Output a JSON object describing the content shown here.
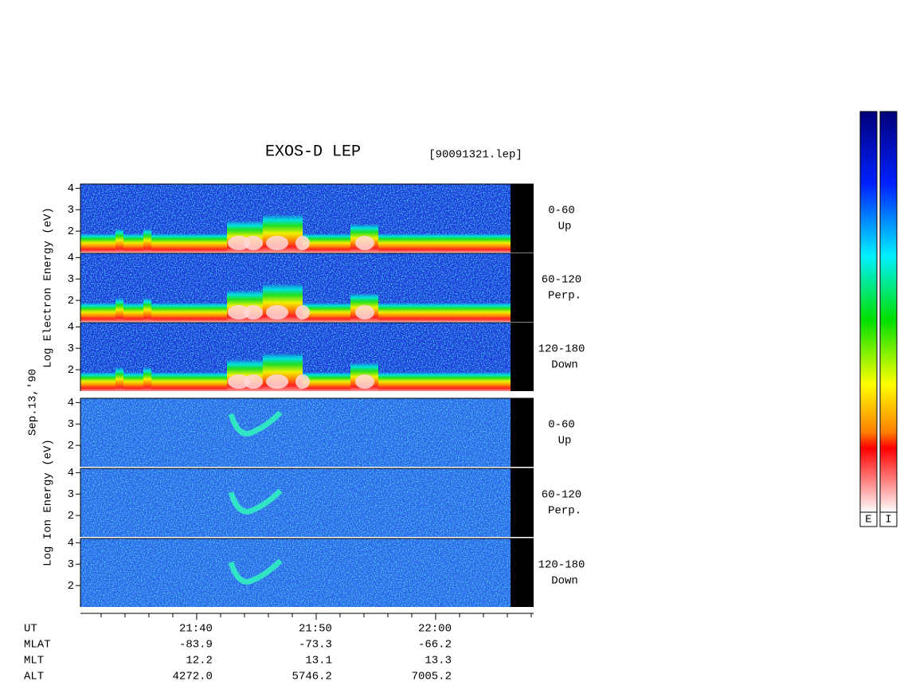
{
  "chart_data": {
    "type": "spectrogram",
    "title": "EXOS-D LEP",
    "subtitle": "[90091321.lep]",
    "date_label": "Sep.13,'90",
    "groups": [
      {
        "ylabel": "Log  Electron  Energy (eV)",
        "panels": [
          {
            "angle": "0-60",
            "direction": "Up"
          },
          {
            "angle": "60-120",
            "direction": "Perp."
          },
          {
            "angle": "120-180",
            "direction": "Down"
          }
        ]
      },
      {
        "ylabel": "Log  Ion  Energy (eV)",
        "panels": [
          {
            "angle": "0-60",
            "direction": "Up"
          },
          {
            "angle": "60-120",
            "direction": "Perp."
          },
          {
            "angle": "120-180",
            "direction": "Down"
          }
        ]
      }
    ],
    "ylim": [
      1,
      4.2
    ],
    "yticks": [
      2,
      3,
      4
    ],
    "xlim": [
      1290.27,
      1328.2
    ],
    "xticks": [
      {
        "value": 1300,
        "label": "21:40"
      },
      {
        "value": 1310,
        "label": "21:50"
      },
      {
        "value": 1320,
        "label": "22:00"
      }
    ],
    "minor_xticks": [
      1292,
      1294,
      1296,
      1298,
      1302,
      1304,
      1306,
      1308,
      1312,
      1314,
      1316,
      1318,
      1322,
      1324,
      1326,
      1328
    ],
    "ephemeris": {
      "x_label": "UT",
      "rows": [
        {
          "label": "MLAT",
          "values": [
            "-83.9",
            "-73.3",
            "-66.2"
          ]
        },
        {
          "label": "MLT",
          "values": [
            "12.2",
            "13.1",
            "13.3"
          ]
        },
        {
          "label": "ALT",
          "values": [
            "4272.0",
            "5746.2",
            "7005.2"
          ]
        }
      ]
    },
    "colorbar_labels": [
      "E",
      "I"
    ]
  }
}
